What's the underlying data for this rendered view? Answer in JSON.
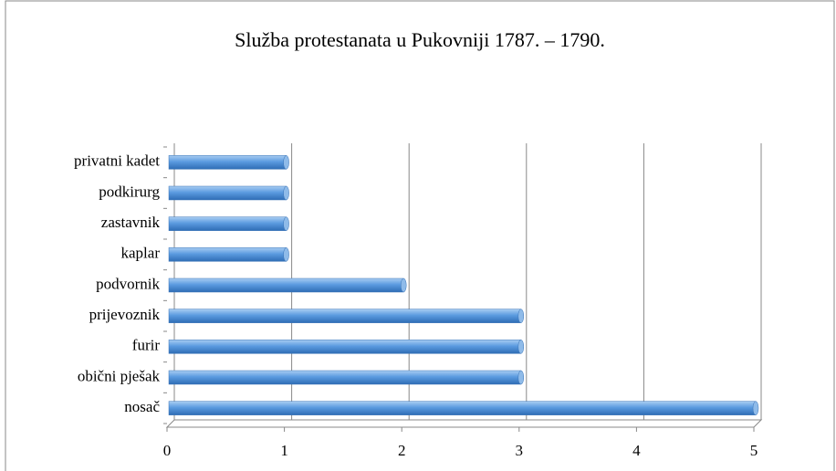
{
  "chart_data": {
    "type": "bar",
    "orientation": "horizontal",
    "title": "Služba protestanata u Pukovniji 1787. – 1790.",
    "categories": [
      "privatni kadet",
      "podkirurg",
      "zastavnik",
      "kaplar",
      "podvornik",
      "prijevoznik",
      "furir",
      "obični pješak",
      "nosač"
    ],
    "values": [
      1,
      1,
      1,
      1,
      2,
      3,
      3,
      3,
      5
    ],
    "color": "#4f8fd6",
    "xlim": [
      0,
      5
    ],
    "xticks": [
      0,
      1,
      2,
      3,
      4,
      5
    ],
    "grid": true
  }
}
